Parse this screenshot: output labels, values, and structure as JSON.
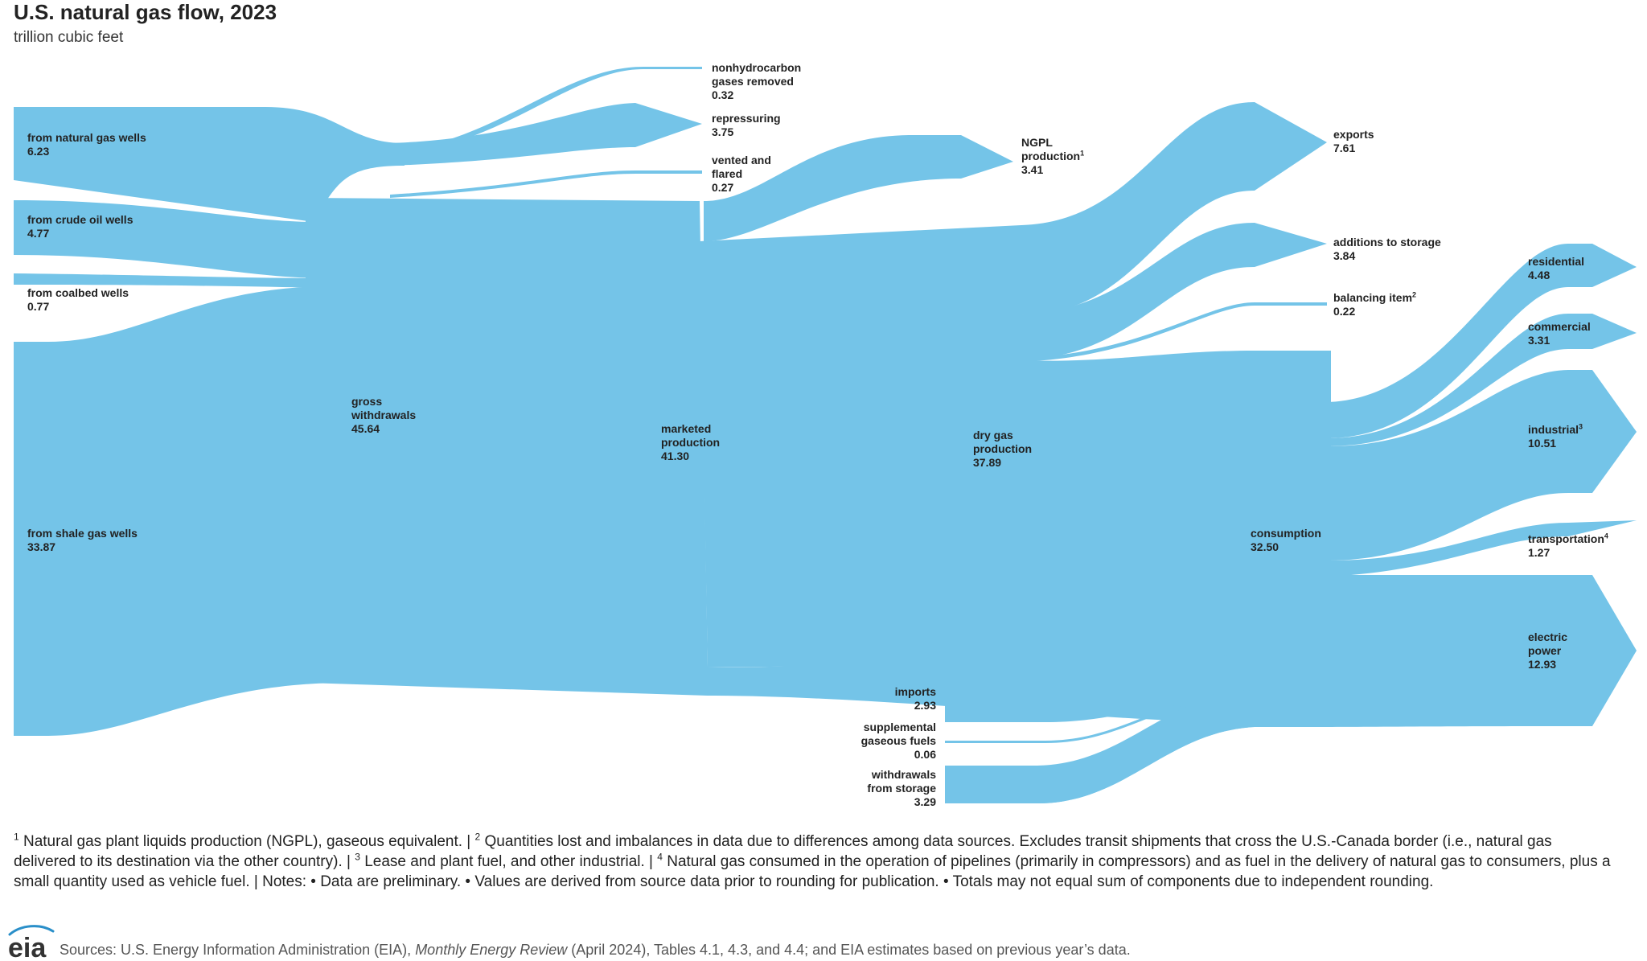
{
  "title": "U.S. natural gas flow, 2023",
  "subtitle": "trillion cubic feet",
  "flow_color": "#74c4e8",
  "nodes": {
    "natural_gas_wells": {
      "label": "from natural gas wells",
      "value": "6.23"
    },
    "crude_oil_wells": {
      "label": "from crude oil wells",
      "value": "4.77"
    },
    "coalbed_wells": {
      "label": "from coalbed wells",
      "value": "0.77"
    },
    "shale_gas_wells": {
      "label": "from shale gas wells",
      "value": "33.87"
    },
    "gross_withdrawals": {
      "label_1": "gross",
      "label_2": "withdrawals",
      "value": "45.64"
    },
    "nonhydrocarbon": {
      "label_1": "nonhydrocarbon",
      "label_2": "gases removed",
      "value": "0.32"
    },
    "repressuring": {
      "label": "repressuring",
      "value": "3.75"
    },
    "vented_flared": {
      "label_1": "vented and",
      "label_2": "flared",
      "value": "0.27"
    },
    "marketed_production": {
      "label_1": "marketed",
      "label_2": "production",
      "value": "41.30"
    },
    "ngpl": {
      "label_1": "NGPL",
      "label_2": "production",
      "sup": "1",
      "value": "3.41"
    },
    "dry_gas_production": {
      "label_1": "dry gas",
      "label_2": "production",
      "value": "37.89"
    },
    "imports": {
      "label": "imports",
      "value": "2.93"
    },
    "supplemental": {
      "label_1": "supplemental",
      "label_2": "gaseous fuels",
      "value": "0.06"
    },
    "withdrawals_storage": {
      "label_1": "withdrawals",
      "label_2": "from storage",
      "value": "3.29"
    },
    "exports": {
      "label": "exports",
      "value": "7.61"
    },
    "additions_storage": {
      "label": "additions to storage",
      "value": "3.84"
    },
    "balancing_item": {
      "label": "balancing item",
      "sup": "2",
      "value": "0.22"
    },
    "consumption": {
      "label": "consumption",
      "value": "32.50"
    },
    "residential": {
      "label": "residential",
      "value": "4.48"
    },
    "commercial": {
      "label": "commercial",
      "value": "3.31"
    },
    "industrial": {
      "label": "industrial",
      "sup": "3",
      "value": "10.51"
    },
    "transportation": {
      "label": "transportation",
      "sup": "4",
      "value": "1.27"
    },
    "electric_power": {
      "label_1": "electric",
      "label_2": "power",
      "value": "12.93"
    }
  },
  "notes": {
    "n1_sup": "1",
    "n1": "Natural gas plant liquids production (NGPL), gaseous equivalent. | ",
    "n2_sup": "2",
    "n2": "Quantities lost and imbalances in data due to differences among data sources. Excludes transit shipments that cross the U.S.-Canada border (i.e., natural gas delivered to its destination via the other country). | ",
    "n3_sup": "3",
    "n3": "Lease and plant fuel, and other industrial. | ",
    "n4_sup": "4",
    "n4": "Natural gas consumed in the operation of pipelines (primarily in compressors) and as fuel in the delivery of natural gas to consumers, plus a small quantity used as vehicle fuel. | Notes: • Data are preliminary. • Values are derived from source data prior to rounding for publication. • Totals may not equal sum of components due to independent rounding."
  },
  "logo_text": "eia",
  "sources": {
    "prefix": "Sources: U.S. Energy Information Administration (EIA), ",
    "italic": "Monthly Energy Review",
    "suffix": " (April 2024), Tables 4.1, 4.3, and 4.4; and EIA estimates based on previous year’s data."
  }
}
